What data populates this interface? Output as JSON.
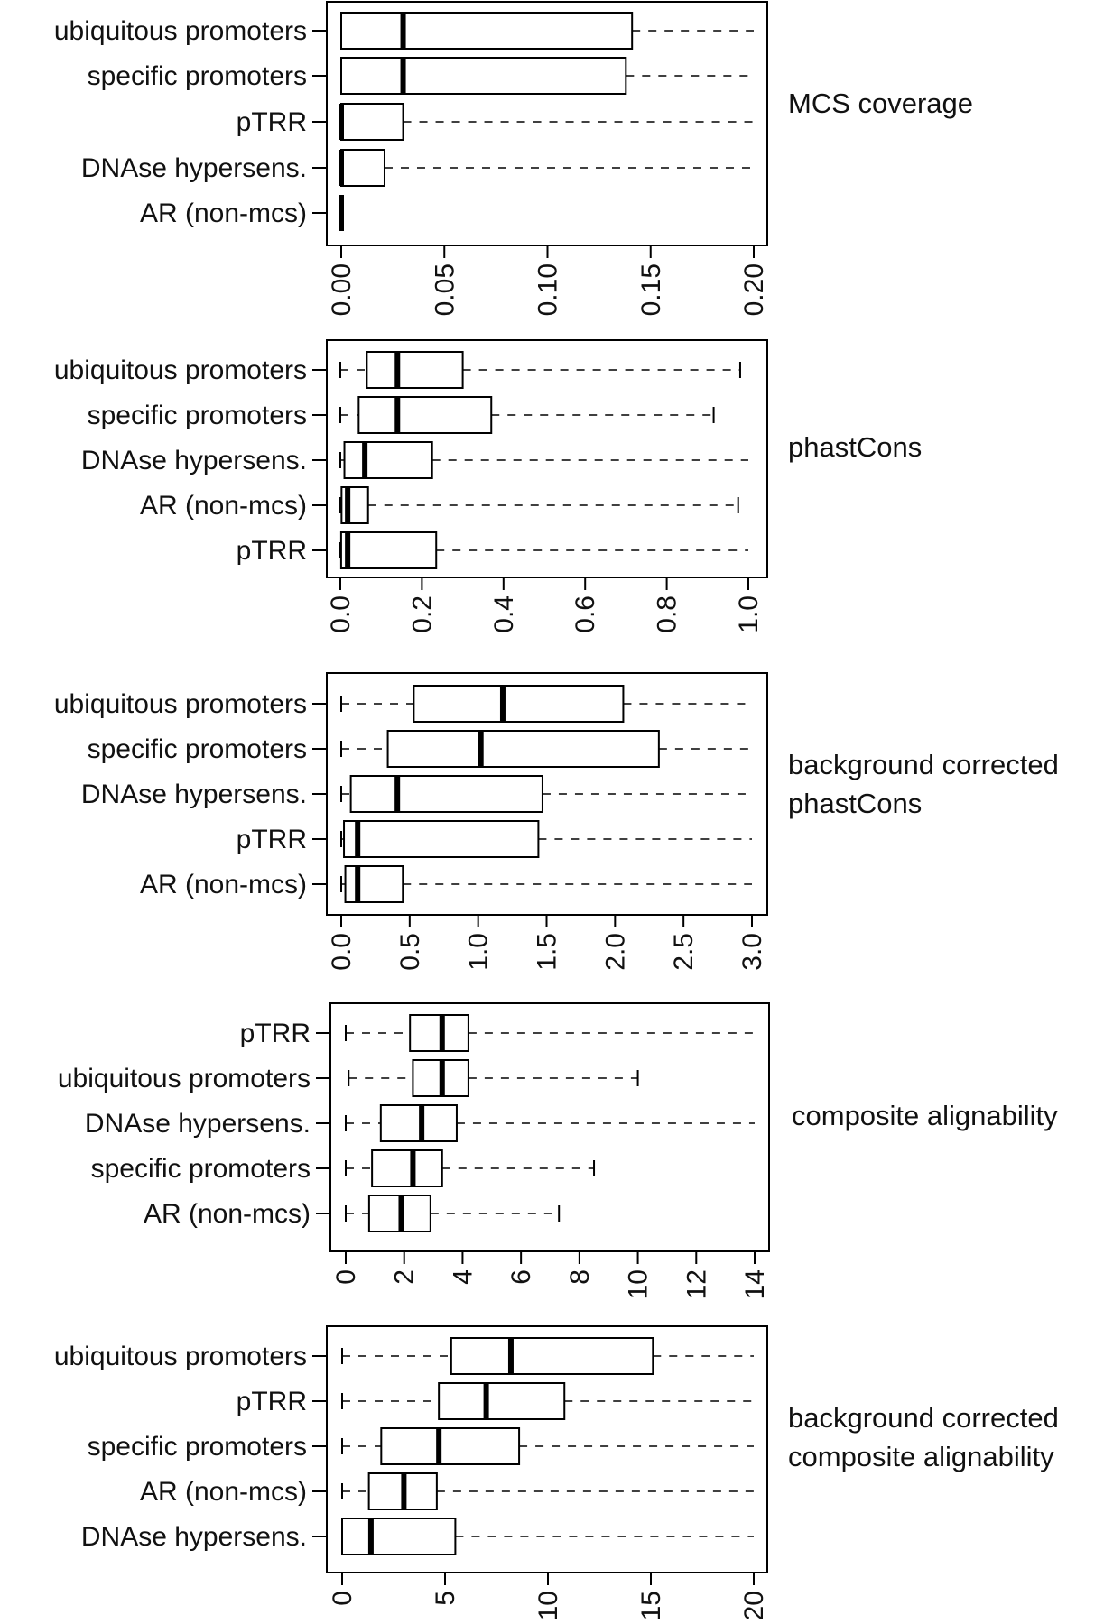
{
  "chart_data": [
    {
      "type": "box",
      "title": [
        "MCS coverage"
      ],
      "xlim": [
        0,
        0.2
      ],
      "ticks": [
        "0.00",
        "0.05",
        "0.10",
        "0.15",
        "0.20"
      ],
      "tick_values": [
        0,
        0.05,
        0.1,
        0.15,
        0.2
      ],
      "rows": [
        {
          "label": "ubiquitous promoters",
          "min": 0,
          "q1": 0.0,
          "median": 0.03,
          "q3": 0.141,
          "max": 0.2
        },
        {
          "label": "specific promoters",
          "min": 0,
          "q1": 0.0,
          "median": 0.03,
          "q3": 0.138,
          "max": 0.2
        },
        {
          "label": "pTRR",
          "min": 0,
          "q1": 0.0,
          "median": 0.0,
          "q3": 0.03,
          "max": 0.2
        },
        {
          "label": "DNAse hypersens.",
          "min": 0,
          "q1": 0.0,
          "median": 0.0,
          "q3": 0.021,
          "max": 0.2
        },
        {
          "label": "AR (non-mcs)",
          "min": 0,
          "q1": 0.0,
          "median": 0.0,
          "q3": 0.0,
          "max": 0.0
        }
      ]
    },
    {
      "type": "box",
      "title": [
        "phastCons"
      ],
      "xlim": [
        0,
        1.0
      ],
      "ticks": [
        "0.0",
        "0.2",
        "0.4",
        "0.6",
        "0.8",
        "1.0"
      ],
      "tick_values": [
        0,
        0.2,
        0.4,
        0.6,
        0.8,
        1.0
      ],
      "rows": [
        {
          "label": "ubiquitous promoters",
          "min": 0.0,
          "q1": 0.065,
          "median": 0.14,
          "q3": 0.3,
          "max": 0.98
        },
        {
          "label": "specific promoters",
          "min": 0.0,
          "q1": 0.045,
          "median": 0.14,
          "q3": 0.37,
          "max": 0.915
        },
        {
          "label": "DNAse hypersens.",
          "min": 0.0,
          "q1": 0.01,
          "median": 0.06,
          "q3": 0.225,
          "max": 1.0
        },
        {
          "label": "AR (non-mcs)",
          "min": 0.0,
          "q1": 0.003,
          "median": 0.018,
          "q3": 0.068,
          "max": 0.975
        },
        {
          "label": "pTRR",
          "min": 0.0,
          "q1": 0.002,
          "median": 0.018,
          "q3": 0.235,
          "max": 1.0
        }
      ]
    },
    {
      "type": "box",
      "title": [
        "background corrected",
        "phastCons"
      ],
      "xlim": [
        0,
        3.0
      ],
      "ticks": [
        "0.0",
        "0.5",
        "1.0",
        "1.5",
        "2.0",
        "2.5",
        "3.0"
      ],
      "tick_values": [
        0,
        0.5,
        1.0,
        1.5,
        2.0,
        2.5,
        3.0
      ],
      "rows": [
        {
          "label": "ubiquitous promoters",
          "min": 0.0,
          "q1": 0.53,
          "median": 1.18,
          "q3": 2.06,
          "max": 3.0
        },
        {
          "label": "specific promoters",
          "min": 0.0,
          "q1": 0.34,
          "median": 1.02,
          "q3": 2.32,
          "max": 3.0
        },
        {
          "label": "DNAse hypersens.",
          "min": 0.0,
          "q1": 0.07,
          "median": 0.41,
          "q3": 1.47,
          "max": 3.0
        },
        {
          "label": "pTRR",
          "min": 0.0,
          "q1": 0.02,
          "median": 0.12,
          "q3": 1.44,
          "max": 3.0
        },
        {
          "label": "AR (non-mcs)",
          "min": 0.0,
          "q1": 0.03,
          "median": 0.12,
          "q3": 0.45,
          "max": 3.0
        }
      ]
    },
    {
      "type": "box",
      "title": [
        "composite alignability"
      ],
      "xlim": [
        0,
        14
      ],
      "ticks": [
        "0",
        "2",
        "4",
        "6",
        "8",
        "10",
        "12",
        "14"
      ],
      "tick_values": [
        0,
        2,
        4,
        6,
        8,
        10,
        12,
        14
      ],
      "rows": [
        {
          "label": "pTRR",
          "min": 0.0,
          "q1": 2.2,
          "median": 3.3,
          "q3": 4.2,
          "max": 14.0
        },
        {
          "label": "ubiquitous promoters",
          "min": 0.1,
          "q1": 2.3,
          "median": 3.3,
          "q3": 4.2,
          "max": 10.0
        },
        {
          "label": "DNAse hypersens.",
          "min": 0.0,
          "q1": 1.2,
          "median": 2.6,
          "q3": 3.8,
          "max": 14.0
        },
        {
          "label": "specific promoters",
          "min": 0.0,
          "q1": 0.9,
          "median": 2.3,
          "q3": 3.3,
          "max": 8.5
        },
        {
          "label": "AR (non-mcs)",
          "min": 0.0,
          "q1": 0.8,
          "median": 1.9,
          "q3": 2.9,
          "max": 7.3
        }
      ]
    },
    {
      "type": "box",
      "title": [
        "background corrected",
        "composite alignability"
      ],
      "xlim": [
        0,
        20
      ],
      "ticks": [
        "0",
        "5",
        "10",
        "15",
        "20"
      ],
      "tick_values": [
        0,
        5,
        10,
        15,
        20
      ],
      "rows": [
        {
          "label": "ubiquitous promoters",
          "min": 0.0,
          "q1": 5.3,
          "median": 8.2,
          "q3": 15.1,
          "max": 20.0
        },
        {
          "label": "pTRR",
          "min": 0.0,
          "q1": 4.7,
          "median": 7.0,
          "q3": 10.8,
          "max": 20.0
        },
        {
          "label": "specific promoters",
          "min": 0.0,
          "q1": 1.9,
          "median": 4.7,
          "q3": 8.6,
          "max": 20.0
        },
        {
          "label": "AR (non-mcs)",
          "min": 0.0,
          "q1": 1.3,
          "median": 3.0,
          "q3": 4.6,
          "max": 20.0
        },
        {
          "label": "DNAse hypersens.",
          "min": 0.0,
          "q1": 0.0,
          "median": 1.4,
          "q3": 5.5,
          "max": 20.0
        }
      ]
    }
  ]
}
